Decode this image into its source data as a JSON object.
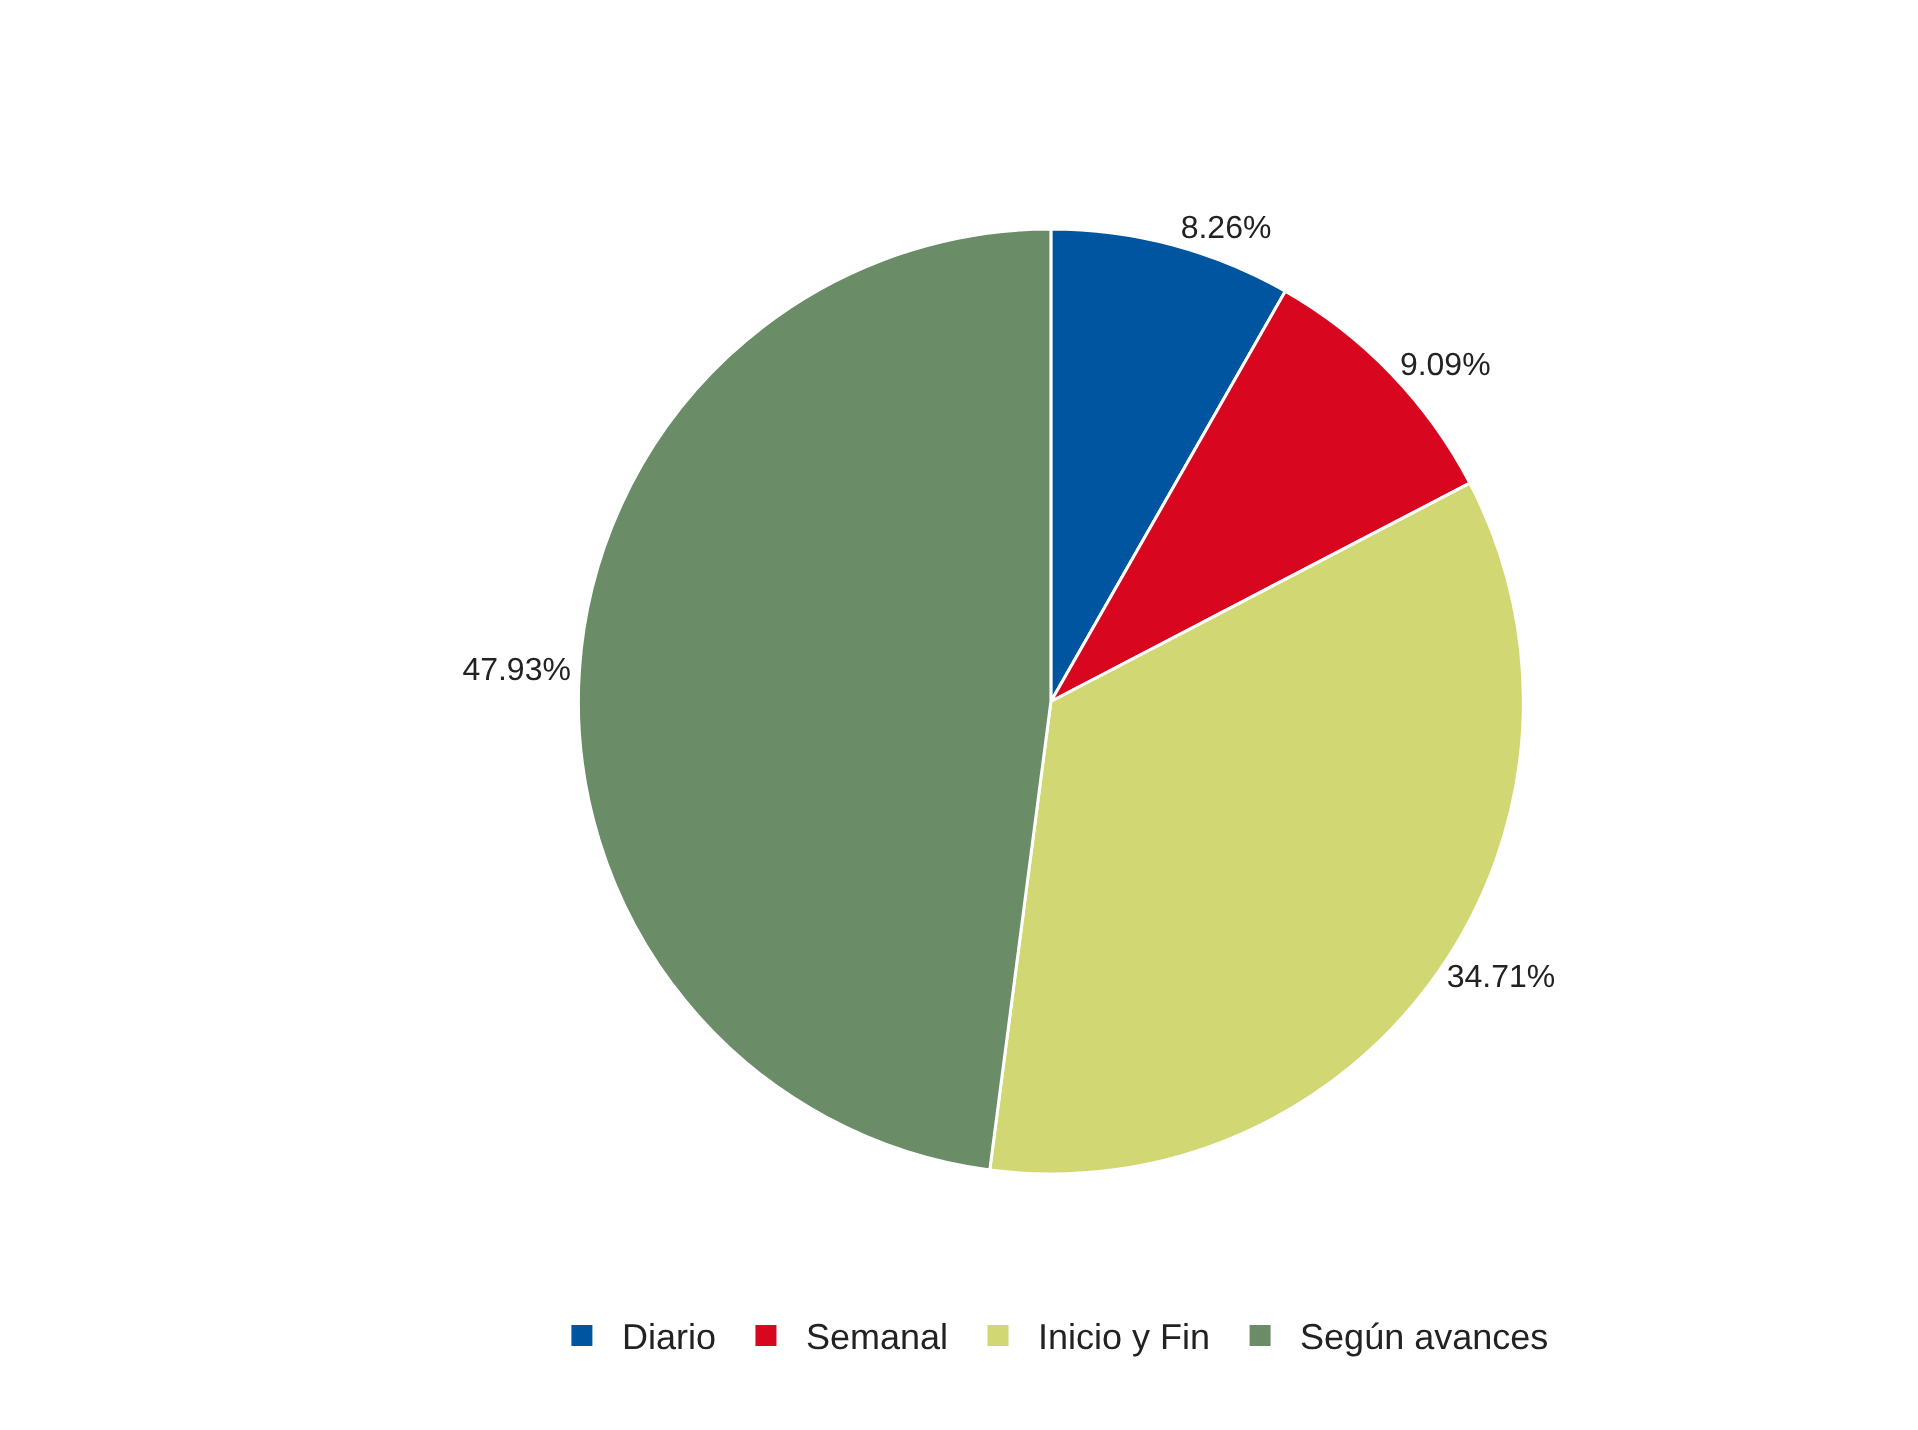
{
  "chart_data": {
    "type": "pie",
    "categories": [
      "Diario",
      "Semanal",
      "Inicio y Fin",
      "Según avances"
    ],
    "values": [
      8.26,
      9.09,
      34.71,
      47.93
    ],
    "colors": [
      "#0055a0",
      "#d9061f",
      "#d1d873",
      "#6a8c66"
    ],
    "value_labels": [
      "8.26%",
      "9.09%",
      "34.71%",
      "47.93%"
    ],
    "legend": "bottom"
  }
}
